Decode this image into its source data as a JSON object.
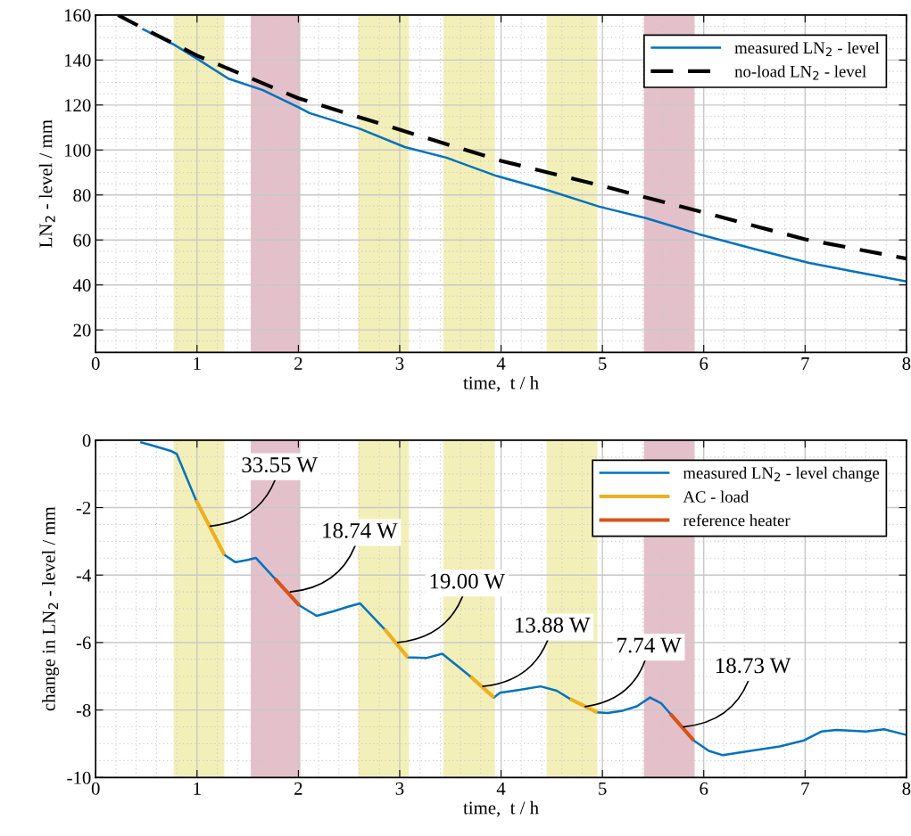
{
  "chart_data": [
    {
      "type": "line",
      "xlabel": "time,  t / h",
      "ylabel": "LN$_{2}$ - level / mm",
      "xlim": [
        0,
        8
      ],
      "ylim": [
        10,
        160
      ],
      "xticks": [
        0,
        1,
        2,
        3,
        4,
        5,
        6,
        7,
        8
      ],
      "yticks": [
        20,
        40,
        60,
        80,
        100,
        120,
        140,
        160
      ],
      "grid": true,
      "legend": "top right",
      "bands": [
        {
          "axis": "x",
          "from": 0.77,
          "to": 1.27,
          "color": "#f3efb8"
        },
        {
          "axis": "x",
          "from": 1.53,
          "to": 2.02,
          "color": "#e4c1ca"
        },
        {
          "axis": "x",
          "from": 2.59,
          "to": 3.09,
          "color": "#f3efb8"
        },
        {
          "axis": "x",
          "from": 3.43,
          "to": 3.94,
          "color": "#f3efb8"
        },
        {
          "axis": "x",
          "from": 4.45,
          "to": 4.95,
          "color": "#f3efb8"
        },
        {
          "axis": "x",
          "from": 5.41,
          "to": 5.91,
          "color": "#e4c1ca"
        }
      ],
      "series": [
        {
          "name": "measured LN$_{2}$ - level",
          "color": "#0072bd",
          "line_style": "solid",
          "x": [
            0.46,
            0.77,
            1.0,
            1.31,
            1.65,
            2.01,
            2.11,
            2.61,
            3.05,
            3.46,
            3.96,
            4.47,
            4.97,
            5.43,
            5.95,
            6.52,
            7.04,
            7.45,
            8.0
          ],
          "values": [
            153.9,
            146.9,
            140.6,
            131.7,
            126.6,
            118.8,
            116.4,
            109.4,
            101.3,
            96.6,
            88.4,
            82.0,
            74.8,
            69.7,
            62.6,
            55.7,
            49.8,
            46.2,
            41.6
          ]
        },
        {
          "name": "no-load LN$_{2}$ - level",
          "color": "#000000",
          "line_style": "dashed",
          "x": [
            0.22,
            0.44,
            1.0,
            2.0,
            3.0,
            4.0,
            5.0,
            6.0,
            7.0,
            8.0
          ],
          "values": [
            160,
            154.8,
            142,
            123,
            109,
            95.2,
            84,
            72.2,
            60.3,
            51.7
          ]
        }
      ]
    },
    {
      "type": "line",
      "xlabel": "time,  t / h",
      "ylabel": "change in LN$_{2}$ - level / mm",
      "xlim": [
        0,
        8
      ],
      "ylim": [
        -10,
        0
      ],
      "xticks": [
        0,
        1,
        2,
        3,
        4,
        5,
        6,
        7,
        8
      ],
      "yticks": [
        -10,
        -8,
        -6,
        -4,
        -2,
        0
      ],
      "grid": true,
      "legend": "top right",
      "bands": [
        {
          "axis": "x",
          "from": 0.77,
          "to": 1.27,
          "color": "#f3efb8"
        },
        {
          "axis": "x",
          "from": 1.53,
          "to": 2.02,
          "color": "#e4c1ca"
        },
        {
          "axis": "x",
          "from": 2.59,
          "to": 3.09,
          "color": "#f3efb8"
        },
        {
          "axis": "x",
          "from": 3.43,
          "to": 3.94,
          "color": "#f3efb8"
        },
        {
          "axis": "x",
          "from": 4.45,
          "to": 4.95,
          "color": "#f3efb8"
        },
        {
          "axis": "x",
          "from": 5.41,
          "to": 5.91,
          "color": "#e4c1ca"
        }
      ],
      "annotations": [
        {
          "text": "33.55 W",
          "x": 1.13,
          "y": -2.55
        },
        {
          "text": "18.74 W",
          "x": 1.92,
          "y": -4.5
        },
        {
          "text": "19.00 W",
          "x": 2.98,
          "y": -6.0
        },
        {
          "text": "13.88 W",
          "x": 3.82,
          "y": -7.3
        },
        {
          "text": "7.74 W",
          "x": 4.83,
          "y": -7.9
        },
        {
          "text": "18.73 W",
          "x": 5.8,
          "y": -8.5
        }
      ],
      "series": [
        {
          "name": "measured LN$_{2}$ - level change",
          "color": "#0072bd",
          "line_style": "solid",
          "x": [
            0.44,
            0.55,
            0.75,
            0.8,
            0.99,
            1.27,
            1.38,
            1.5,
            1.58,
            1.77,
            2.01,
            2.18,
            2.35,
            2.49,
            2.61,
            2.85,
            3.08,
            3.26,
            3.42,
            3.7,
            3.93,
            3.99,
            4.17,
            4.39,
            4.55,
            4.68,
            4.95,
            5.05,
            5.2,
            5.34,
            5.47,
            5.58,
            5.67,
            5.9,
            6.05,
            6.19,
            6.46,
            6.75,
            6.99,
            7.16,
            7.31,
            7.6,
            7.78,
            8.0
          ],
          "values": [
            -0.06,
            -0.15,
            -0.33,
            -0.41,
            -1.78,
            -3.4,
            -3.62,
            -3.55,
            -3.49,
            -4.11,
            -4.9,
            -5.21,
            -5.07,
            -4.94,
            -4.84,
            -5.6,
            -6.44,
            -6.46,
            -6.33,
            -7.01,
            -7.63,
            -7.49,
            -7.41,
            -7.3,
            -7.43,
            -7.67,
            -8.07,
            -8.09,
            -8.02,
            -7.89,
            -7.63,
            -7.8,
            -8.11,
            -8.9,
            -9.21,
            -9.34,
            -9.21,
            -9.08,
            -8.9,
            -8.64,
            -8.59,
            -8.64,
            -8.57,
            -8.74
          ]
        },
        {
          "name": "AC - load",
          "color": "#edb120",
          "line_style": "solid",
          "x": [
            0.99,
            1.27,
            1.28,
            2.85,
            3.08,
            3.09,
            3.7,
            3.93,
            3.94,
            4.68,
            4.95
          ],
          "values": [
            -1.78,
            -3.4,
            null,
            -5.6,
            -6.44,
            null,
            -7.01,
            -7.63,
            null,
            -7.67,
            -8.07
          ]
        },
        {
          "name": "reference heater",
          "color": "#d95319",
          "line_style": "solid",
          "x": [
            1.77,
            2.01,
            2.02,
            5.67,
            5.9
          ],
          "values": [
            -4.11,
            -4.9,
            null,
            -8.11,
            -8.9
          ]
        }
      ]
    }
  ]
}
